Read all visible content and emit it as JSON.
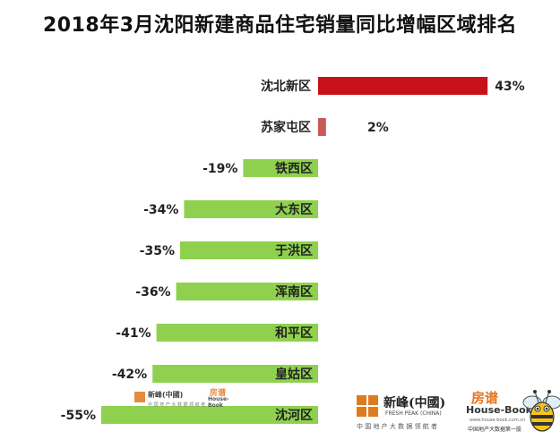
{
  "title": "2018年3月沈阳新建商品住宅销量同比增幅区域排名",
  "chart_data": {
    "type": "bar",
    "orientation": "horizontal",
    "categories": [
      "沈北新区",
      "苏家屯区",
      "铁西区",
      "大东区",
      "于洪区",
      "浑南区",
      "和平区",
      "皇姑区",
      "沈河区"
    ],
    "values": [
      43,
      2,
      -19,
      -34,
      -35,
      -36,
      -41,
      -42,
      -55
    ],
    "value_labels": [
      "43%",
      "2%",
      "-19%",
      "-34%",
      "-35%",
      "-36%",
      "-41%",
      "-42%",
      "-55%"
    ],
    "unit": "%",
    "colors": {
      "positive_large": "#c8101a",
      "positive_small": "#c9585a",
      "negative": "#8fd14f"
    },
    "grid": false,
    "legend": "none"
  },
  "logos": {
    "xinfeng": {
      "name": "新峰(中國)",
      "en": "FRESH PEAK (CHINA)",
      "sub": "中 国 地 产 大 数 据 领 航 者",
      "icon": "xinfeng-logo-icon"
    },
    "fangtu": {
      "brand": "房谱",
      "en": "House-Book",
      "url": "www.house-book.com.cn",
      "tag": "中国地产大数据第一股",
      "icon": "bee-mascot-icon"
    }
  }
}
